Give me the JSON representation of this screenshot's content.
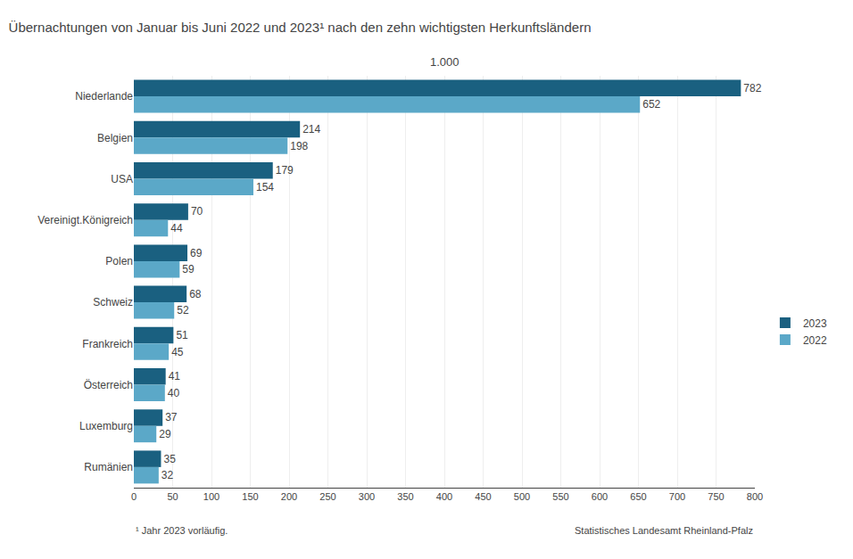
{
  "chart_data": {
    "type": "bar",
    "orientation": "horizontal",
    "title": "Übernachtungen von Januar bis Juni 2022 und 2023¹ nach den zehn wichtigsten Herkunftsländern",
    "xlabel": "1.000",
    "annotations": [
      "¹ Jahr 2023 vorläufig.",
      "Statistisches Landesamt Rheinland-Pfalz"
    ],
    "categories": [
      "Niederlande",
      "Belgien",
      "USA",
      "Vereinigt.Königreich",
      "Polen",
      "Schweiz",
      "Frankreich",
      "Österreich",
      "Luxemburg",
      "Rumänien"
    ],
    "series": [
      {
        "name": "2023",
        "color": "#1a6080",
        "values": [
          782,
          214,
          179,
          70,
          69,
          68,
          51,
          41,
          37,
          35
        ]
      },
      {
        "name": "2022",
        "color": "#5ba8c8",
        "values": [
          652,
          198,
          154,
          44,
          59,
          52,
          45,
          40,
          29,
          32
        ]
      }
    ],
    "xlim": [
      0,
      800
    ],
    "xticks": [
      0,
      50,
      100,
      150,
      200,
      250,
      300,
      350,
      400,
      450,
      500,
      550,
      600,
      650,
      700,
      750,
      800
    ],
    "grid": true,
    "legend": "right",
    "data_labels": true
  }
}
